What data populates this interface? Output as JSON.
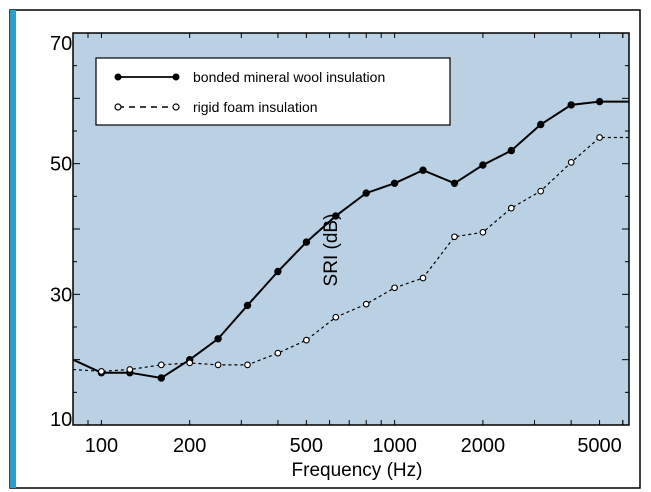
{
  "chart_data": {
    "type": "line",
    "title": "",
    "xlabel": "Frequency (Hz)",
    "ylabel": "SRI (dB)",
    "x_scale": "log",
    "xlim": [
      80,
      6300
    ],
    "ylim": [
      10,
      70
    ],
    "x_ticks": [
      {
        "value": 100,
        "label": "100"
      },
      {
        "value": 200,
        "label": "200"
      },
      {
        "value": 500,
        "label": "500"
      },
      {
        "value": 1000,
        "label": "1000"
      },
      {
        "value": 2000,
        "label": "2000"
      },
      {
        "value": 5000,
        "label": "5000"
      }
    ],
    "y_ticks": [
      {
        "value": 10,
        "label": "10"
      },
      {
        "value": 30,
        "label": "30"
      },
      {
        "value": 50,
        "label": "50"
      },
      {
        "value": 70,
        "label": "70"
      }
    ],
    "x": [
      80,
      100,
      125,
      160,
      200,
      250,
      315,
      400,
      500,
      630,
      800,
      1000,
      1250,
      1600,
      2000,
      2500,
      3150,
      4000,
      5000,
      6300
    ],
    "series": [
      {
        "name": "bonded mineral wool insulation",
        "color": "#000000",
        "style": "solid-filled-circles",
        "values": [
          20.0,
          18.0,
          18.0,
          17.2,
          20.0,
          23.2,
          28.3,
          33.5,
          38.0,
          42.0,
          45.5,
          47.0,
          49.0,
          47.0,
          49.8,
          52.0,
          56.0,
          59.0,
          59.5,
          59.5
        ]
      },
      {
        "name": "rigid foam insulation",
        "color": "#000000",
        "style": "dashed-open-circles",
        "values": [
          18.5,
          18.2,
          18.5,
          19.2,
          19.5,
          19.2,
          19.2,
          21.0,
          23.0,
          26.5,
          28.5,
          31.0,
          32.5,
          38.8,
          39.5,
          43.2,
          45.8,
          50.2,
          54.0,
          54.0
        ]
      }
    ],
    "grid": false,
    "legend": "top-left",
    "colors": {
      "plot_background": "#b9d1e3",
      "frame": "#000000",
      "accent_bar": "#2a9fc9"
    }
  }
}
